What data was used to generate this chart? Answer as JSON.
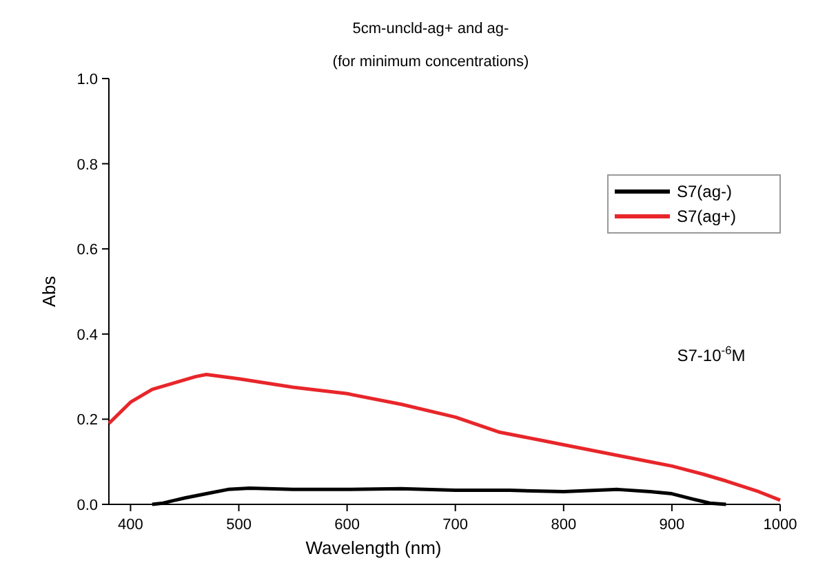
{
  "chart_data": {
    "type": "line",
    "title": "5cm-uncld-ag+ and ag-",
    "subtitle": "(for minimum concentrations)",
    "xlabel": "Wavelength (nm)",
    "ylabel": "Abs",
    "xlim": [
      380,
      1000
    ],
    "xticks": [
      400,
      500,
      600,
      700,
      800,
      900,
      1000
    ],
    "ylim": [
      0,
      1.0
    ],
    "yticks": [
      {
        "value": 0,
        "label": "0.0"
      },
      {
        "value": 0.2,
        "label": "0.2"
      },
      {
        "value": 0.4,
        "label": "0.4"
      },
      {
        "value": 0.6,
        "label": "0.6"
      },
      {
        "value": 0.8,
        "label": "0.8"
      },
      {
        "value": 1.0,
        "label": "1.0"
      }
    ],
    "legend": "top right",
    "grid": false,
    "line_style": "solid",
    "annotations": [
      "S7-10$^{-6}$M"
    ],
    "series": [
      {
        "name": "S7(ag-)",
        "color": "#000000",
        "x": [
          420,
          430,
          450,
          470,
          490,
          510,
          550,
          600,
          650,
          700,
          750,
          800,
          850,
          880,
          900,
          920,
          935,
          950
        ],
        "values": [
          0,
          0.003,
          0.015,
          0.025,
          0.035,
          0.038,
          0.035,
          0.035,
          0.037,
          0.033,
          0.033,
          0.03,
          0.035,
          0.03,
          0.025,
          0.012,
          0.003,
          0
        ]
      },
      {
        "name": "S7(ag+)",
        "color": "#e8262a",
        "x": [
          380,
          400,
          420,
          440,
          460,
          470,
          500,
          550,
          600,
          650,
          700,
          740,
          780,
          800,
          850,
          880,
          900,
          930,
          950,
          980,
          1000
        ],
        "values": [
          0.19,
          0.24,
          0.27,
          0.285,
          0.3,
          0.305,
          0.295,
          0.275,
          0.26,
          0.235,
          0.205,
          0.17,
          0.15,
          0.14,
          0.115,
          0.1,
          0.09,
          0.07,
          0.055,
          0.03,
          0.01
        ]
      }
    ]
  }
}
